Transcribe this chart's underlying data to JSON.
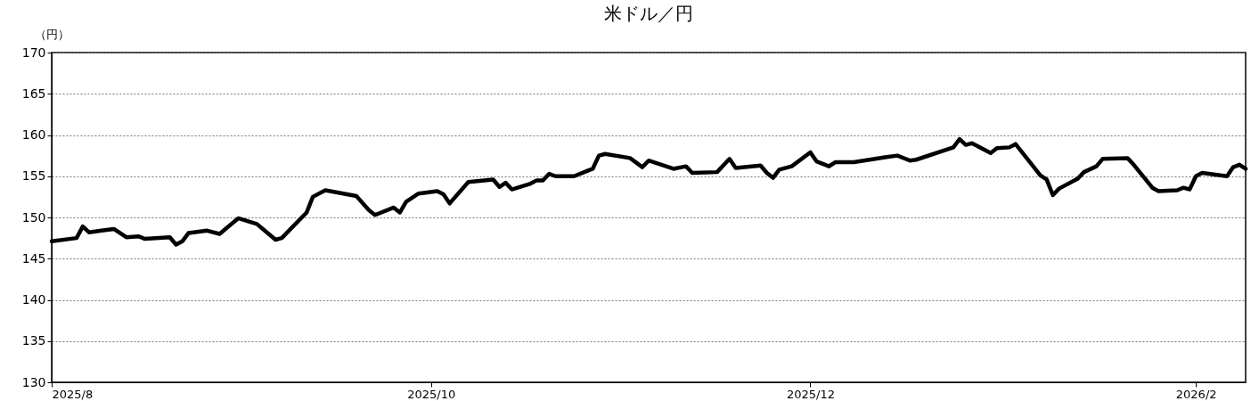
{
  "chart_data": {
    "type": "line",
    "title": "米ドル／円",
    "ylabel": "（円）",
    "x": [
      "2025-08-01",
      "2025-08-05",
      "2025-08-06",
      "2025-08-07",
      "2025-08-09",
      "2025-08-11",
      "2025-08-13",
      "2025-08-15",
      "2025-08-16",
      "2025-08-20",
      "2025-08-21",
      "2025-08-22",
      "2025-08-23",
      "2025-08-26",
      "2025-08-28",
      "2025-08-31",
      "2025-09-03",
      "2025-09-06",
      "2025-09-07",
      "2025-09-11",
      "2025-09-12",
      "2025-09-14",
      "2025-09-19",
      "2025-09-21",
      "2025-09-22",
      "2025-09-25",
      "2025-09-26",
      "2025-09-27",
      "2025-09-29",
      "2025-10-02",
      "2025-10-03",
      "2025-10-04",
      "2025-10-07",
      "2025-10-11",
      "2025-10-12",
      "2025-10-13",
      "2025-10-14",
      "2025-10-17",
      "2025-10-18",
      "2025-10-19",
      "2025-10-20",
      "2025-10-21",
      "2025-10-24",
      "2025-10-26",
      "2025-10-27",
      "2025-10-28",
      "2025-10-29",
      "2025-11-02",
      "2025-11-04",
      "2025-11-05",
      "2025-11-09",
      "2025-11-11",
      "2025-11-12",
      "2025-11-16",
      "2025-11-18",
      "2025-11-19",
      "2025-11-23",
      "2025-11-24",
      "2025-11-25",
      "2025-11-26",
      "2025-11-28",
      "2025-12-01",
      "2025-12-02",
      "2025-12-04",
      "2025-12-05",
      "2025-12-08",
      "2025-12-13",
      "2025-12-15",
      "2025-12-17",
      "2025-12-18",
      "2025-12-24",
      "2025-12-25",
      "2025-12-26",
      "2025-12-27",
      "2025-12-30",
      "2025-12-31",
      "2026-01-02",
      "2026-01-03",
      "2026-01-07",
      "2026-01-08",
      "2026-01-09",
      "2026-01-10",
      "2026-01-13",
      "2026-01-14",
      "2026-01-16",
      "2026-01-17",
      "2026-01-21",
      "2026-01-22",
      "2026-01-25",
      "2026-01-26",
      "2026-01-29",
      "2026-01-30",
      "2026-01-31",
      "2026-02-01",
      "2026-02-02",
      "2026-02-06",
      "2026-02-07",
      "2026-02-08",
      "2026-02-09"
    ],
    "series": [
      {
        "color": "#000000",
        "values": [
          147.1,
          147.5,
          148.9,
          148.2,
          148.4,
          148.6,
          147.6,
          147.7,
          147.4,
          147.6,
          146.7,
          147.1,
          148.1,
          148.4,
          148.0,
          149.9,
          149.2,
          147.3,
          147.5,
          150.6,
          152.5,
          153.3,
          152.6,
          150.9,
          150.3,
          151.2,
          150.6,
          151.9,
          152.9,
          153.2,
          152.8,
          151.7,
          154.3,
          154.6,
          153.7,
          154.2,
          153.4,
          154.1,
          154.5,
          154.5,
          155.3,
          155.0,
          155.0,
          155.6,
          155.9,
          157.5,
          157.7,
          157.2,
          156.1,
          156.9,
          155.9,
          156.2,
          155.4,
          155.5,
          157.1,
          156.0,
          156.3,
          155.4,
          154.8,
          155.8,
          156.2,
          157.9,
          156.8,
          156.2,
          156.7,
          156.7,
          157.3,
          157.5,
          156.9,
          157.0,
          158.5,
          159.5,
          158.8,
          159.0,
          157.8,
          158.4,
          158.5,
          158.9,
          155.1,
          154.6,
          152.7,
          153.5,
          154.7,
          155.5,
          156.2,
          157.1,
          157.2,
          156.4,
          153.6,
          153.2,
          153.3,
          153.6,
          153.4,
          155.0,
          155.4,
          155.0,
          156.1,
          156.4,
          155.9
        ]
      }
    ],
    "xlim": [
      "2025-08-01",
      "2026-02-09"
    ],
    "xticks": [
      {
        "value": "2025-08-01",
        "label": "2025/8"
      },
      {
        "value": "2025-10-01",
        "label": "2025/10"
      },
      {
        "value": "2025-12-01",
        "label": "2025/12"
      },
      {
        "value": "2026-02-01",
        "label": "2026/2"
      }
    ],
    "ylim": [
      130,
      170
    ],
    "yticks": [
      130,
      135,
      140,
      145,
      150,
      155,
      160,
      165,
      170
    ],
    "grid": "y",
    "marker": "none",
    "line_style": "solid"
  }
}
